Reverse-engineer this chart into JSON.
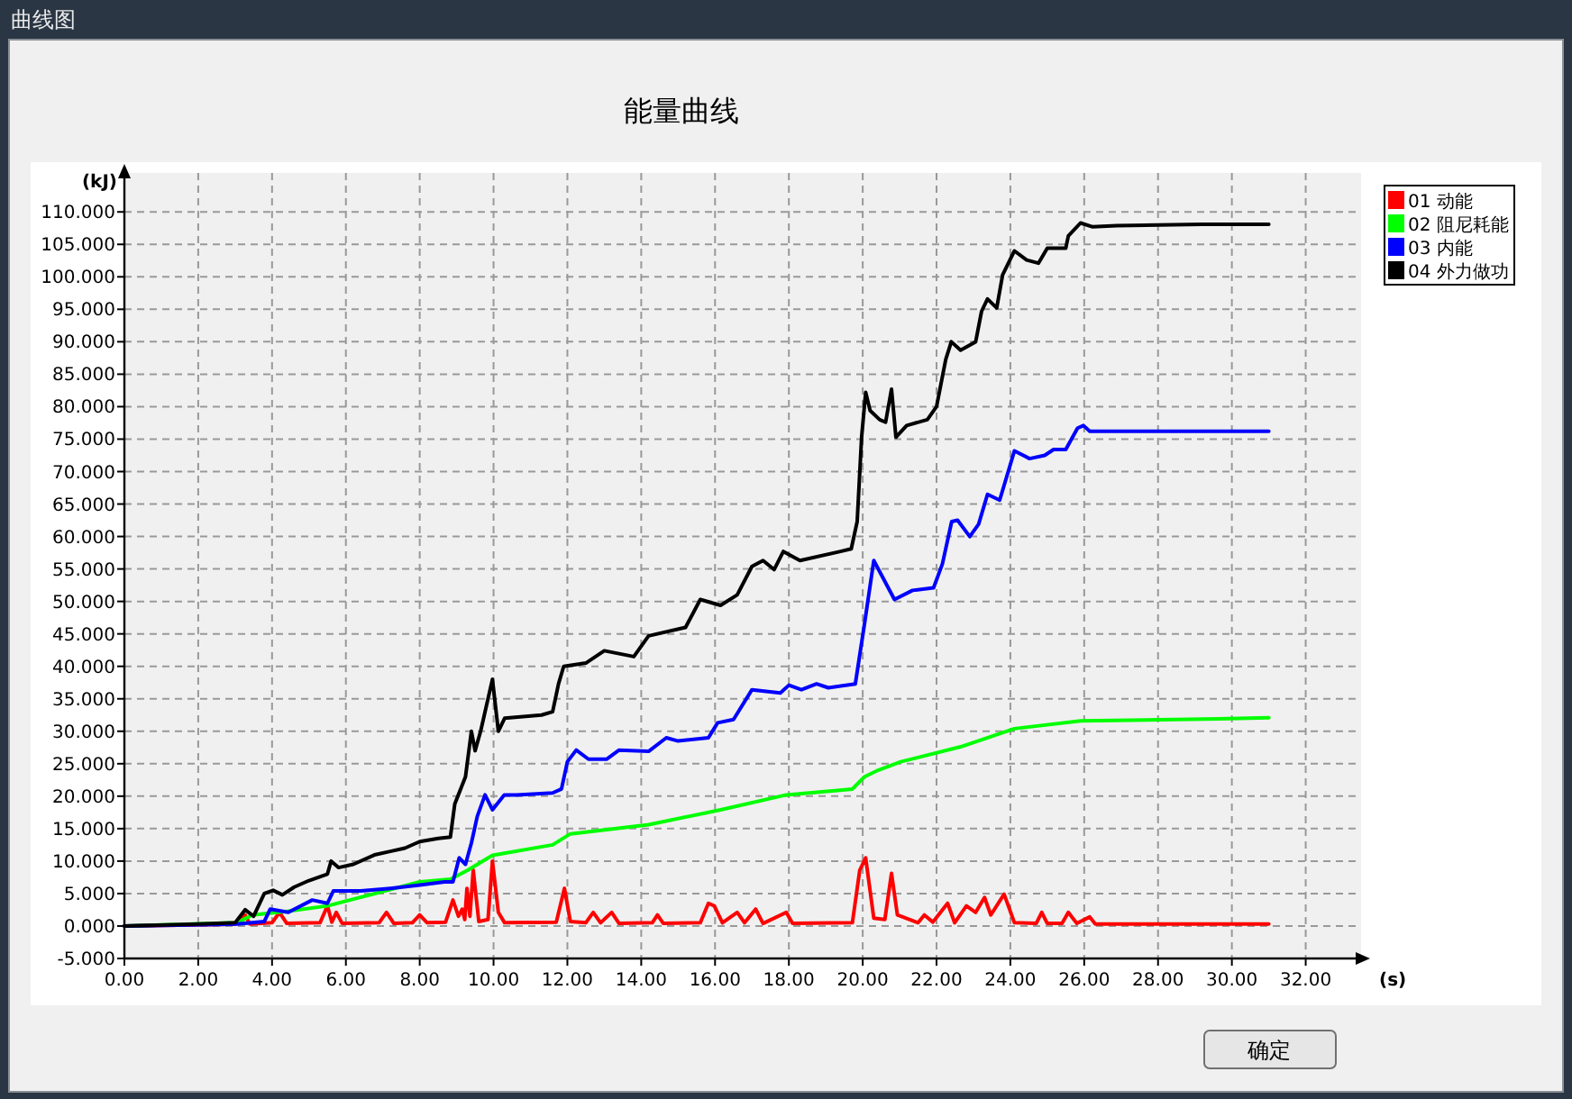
{
  "chart_data": {
    "type": "line",
    "title": "能量曲线",
    "xlabel": "(s)",
    "ylabel": "(kJ)",
    "annotations": [
      "曲线图",
      "确定"
    ],
    "xlim": [
      0,
      33.5
    ],
    "ylim": [
      -5,
      116
    ],
    "xticks": [
      {
        "value": 0,
        "label": "0.00"
      },
      {
        "value": 2,
        "label": "2.00"
      },
      {
        "value": 4,
        "label": "4.00"
      },
      {
        "value": 6,
        "label": "6.00"
      },
      {
        "value": 8,
        "label": "8.00"
      },
      {
        "value": 10,
        "label": "10.00"
      },
      {
        "value": 12,
        "label": "12.00"
      },
      {
        "value": 14,
        "label": "14.00"
      },
      {
        "value": 16,
        "label": "16.00"
      },
      {
        "value": 18,
        "label": "18.00"
      },
      {
        "value": 20,
        "label": "20.00"
      },
      {
        "value": 22,
        "label": "22.00"
      },
      {
        "value": 24,
        "label": "24.00"
      },
      {
        "value": 26,
        "label": "26.00"
      },
      {
        "value": 28,
        "label": "28.00"
      },
      {
        "value": 30,
        "label": "30.00"
      },
      {
        "value": 32,
        "label": "32.00"
      }
    ],
    "yticks": [
      {
        "value": -5,
        "label": "-5.000"
      },
      {
        "value": 0,
        "label": "0.000"
      },
      {
        "value": 5,
        "label": "5.000"
      },
      {
        "value": 10,
        "label": "10.000"
      },
      {
        "value": 15,
        "label": "15.000"
      },
      {
        "value": 20,
        "label": "20.000"
      },
      {
        "value": 25,
        "label": "25.000"
      },
      {
        "value": 30,
        "label": "30.000"
      },
      {
        "value": 35,
        "label": "35.000"
      },
      {
        "value": 40,
        "label": "40.000"
      },
      {
        "value": 45,
        "label": "45.000"
      },
      {
        "value": 50,
        "label": "50.000"
      },
      {
        "value": 55,
        "label": "55.000"
      },
      {
        "value": 60,
        "label": "60.000"
      },
      {
        "value": 65,
        "label": "65.000"
      },
      {
        "value": 70,
        "label": "70.000"
      },
      {
        "value": 75,
        "label": "75.000"
      },
      {
        "value": 80,
        "label": "80.000"
      },
      {
        "value": 85,
        "label": "85.000"
      },
      {
        "value": 90,
        "label": "90.000"
      },
      {
        "value": 95,
        "label": "95.000"
      },
      {
        "value": 100,
        "label": "100.000"
      },
      {
        "value": 105,
        "label": "105.000"
      },
      {
        "value": 110,
        "label": "110.000"
      }
    ],
    "grid": true,
    "legend": "top right",
    "line_style": "solid",
    "series": [
      {
        "name": "01 动能",
        "color": "#ff0000",
        "x": [
          0,
          3.0,
          3.27,
          3.4,
          4.0,
          4.2,
          4.4,
          5.3,
          5.5,
          5.62,
          5.74,
          5.9,
          6.9,
          7.1,
          7.3,
          7.8,
          8.0,
          8.2,
          8.7,
          8.9,
          9.05,
          9.15,
          9.22,
          9.28,
          9.36,
          9.45,
          9.6,
          9.85,
          9.97,
          10.13,
          10.3,
          11.7,
          11.92,
          12.08,
          12.5,
          12.7,
          12.9,
          13.2,
          13.4,
          14.3,
          14.44,
          14.6,
          15.6,
          15.82,
          15.98,
          16.2,
          16.6,
          16.8,
          17.1,
          17.3,
          17.93,
          18.1,
          19.72,
          19.92,
          20.08,
          20.3,
          20.6,
          20.78,
          20.94,
          21.5,
          21.67,
          21.9,
          22.3,
          22.49,
          22.81,
          23.06,
          23.3,
          23.47,
          23.83,
          24.11,
          24.7,
          24.85,
          25.0,
          25.4,
          25.57,
          25.8,
          26.15,
          26.3,
          31
        ],
        "values": [
          0,
          0.3,
          1.7,
          0.3,
          0.5,
          2.1,
          0.4,
          0.5,
          3.1,
          0.6,
          2.1,
          0.4,
          0.5,
          2.1,
          0.4,
          0.5,
          1.7,
          0.5,
          0.6,
          4,
          1.5,
          2.6,
          1.0,
          5.8,
          1.5,
          8.6,
          0.7,
          1.0,
          10,
          2.1,
          0.5,
          0.6,
          5.8,
          0.7,
          0.5,
          2.1,
          0.5,
          2.1,
          0.4,
          0.5,
          1.7,
          0.4,
          0.5,
          3.5,
          3.1,
          0.5,
          2.1,
          0.5,
          2.6,
          0.4,
          2.1,
          0.4,
          0.5,
          8.6,
          10.5,
          1.2,
          1.0,
          8.1,
          1.7,
          0.5,
          1.7,
          0.6,
          3.5,
          0.5,
          3.1,
          2.1,
          4.4,
          1.7,
          4.9,
          0.5,
          0.4,
          2.1,
          0.4,
          0.4,
          2.1,
          0.4,
          1.4,
          0.3,
          0.3
        ]
      },
      {
        "name": "02 阻尼耗能",
        "color": "#00ff00",
        "x": [
          0,
          3.06,
          3.46,
          4.44,
          5.5,
          8,
          8.83,
          9.3,
          9.97,
          11.6,
          12.08,
          14.2,
          16.15,
          17.93,
          19.72,
          20.05,
          20.38,
          21.03,
          22.65,
          24.11,
          25.9,
          29.64,
          31
        ],
        "values": [
          0,
          0.5,
          1.7,
          2.3,
          3.1,
          6.8,
          7.2,
          8.6,
          10.9,
          12.5,
          14.2,
          15.6,
          17.9,
          20.2,
          21.1,
          23,
          23.9,
          25.3,
          27.6,
          30.4,
          31.6,
          31.9,
          32.1
        ]
      },
      {
        "name": "03 内能",
        "color": "#0000ff",
        "x": [
          0,
          3.06,
          3.79,
          3.95,
          4.44,
          5.09,
          5.5,
          5.66,
          6.4,
          7.2,
          8,
          8.67,
          8.9,
          9.07,
          9.24,
          9.4,
          9.56,
          9.77,
          9.97,
          10.29,
          10.62,
          11.6,
          11.84,
          12,
          12.24,
          12.57,
          13.06,
          13.4,
          14.2,
          14.68,
          15,
          15.82,
          16.07,
          16.5,
          17,
          17.77,
          18,
          18.34,
          18.75,
          19.07,
          19.8,
          20.05,
          20.3,
          20.86,
          21.35,
          21.92,
          22.16,
          22.41,
          22.57,
          22.9,
          23.14,
          23.38,
          23.71,
          24.11,
          24.52,
          24.93,
          25.17,
          25.5,
          25.82,
          25.98,
          26.15,
          31
        ],
        "values": [
          0,
          0.3,
          0.7,
          2.6,
          2.1,
          4,
          3.5,
          5.4,
          5.4,
          5.8,
          6.3,
          6.8,
          6.8,
          10.5,
          9.5,
          12.8,
          16.9,
          20.2,
          17.9,
          20.2,
          20.2,
          20.5,
          21.1,
          25.3,
          27.1,
          25.7,
          25.7,
          27.1,
          26.9,
          29,
          28.5,
          29,
          31.3,
          31.8,
          36.4,
          35.9,
          37.1,
          36.4,
          37.3,
          36.7,
          37.3,
          46.6,
          56.3,
          50.3,
          51.7,
          52.1,
          55.8,
          62.3,
          62.5,
          60,
          61.9,
          66.5,
          65.6,
          73.2,
          72,
          72.5,
          73.4,
          73.4,
          76.7,
          77.1,
          76.2,
          76.2
        ]
      },
      {
        "name": "04 外力做功",
        "color": "#000000",
        "x": [
          0,
          2,
          3,
          3.27,
          3.5,
          3.79,
          4.03,
          4.28,
          4.6,
          5,
          5.5,
          5.6,
          5.8,
          6.2,
          6.8,
          7.2,
          7.6,
          8,
          8.5,
          8.83,
          8.95,
          9.24,
          9.4,
          9.5,
          9.65,
          9.97,
          10.13,
          10.3,
          11.3,
          11.6,
          11.76,
          11.9,
          12.5,
          13,
          13.8,
          14.2,
          15.2,
          15.6,
          16.15,
          16.6,
          17,
          17.3,
          17.6,
          17.85,
          18.3,
          19.4,
          19.69,
          19.85,
          19.97,
          20.08,
          20.2,
          20.46,
          20.62,
          20.78,
          20.9,
          21.19,
          21.75,
          22,
          22.25,
          22.4,
          22.65,
          23.06,
          23.22,
          23.38,
          23.63,
          23.79,
          24.11,
          24.44,
          24.76,
          25,
          25.5,
          25.57,
          25.9,
          26.23,
          26.88,
          29.2,
          31
        ],
        "values": [
          0,
          0.3,
          0.5,
          2.5,
          1.5,
          5,
          5.5,
          4.8,
          6,
          7,
          8,
          10,
          9,
          9.5,
          11,
          11.5,
          12,
          13,
          13.5,
          13.7,
          18.8,
          23,
          30,
          27,
          30,
          38,
          30,
          32,
          32.5,
          33,
          37.3,
          40,
          40.5,
          42.4,
          41.5,
          44.7,
          46,
          50.3,
          49.4,
          51,
          55.4,
          56.3,
          54.9,
          57.7,
          56.3,
          57.7,
          58.1,
          62.3,
          75.3,
          82.2,
          79.4,
          78,
          77.6,
          82.7,
          75.3,
          77.1,
          78,
          80,
          87.3,
          90,
          88.7,
          90,
          94.7,
          96.6,
          95.2,
          100.3,
          104,
          102.6,
          102.1,
          104.4,
          104.4,
          106.3,
          108.3,
          107.7,
          107.9,
          108.1,
          108.1
        ]
      }
    ]
  }
}
